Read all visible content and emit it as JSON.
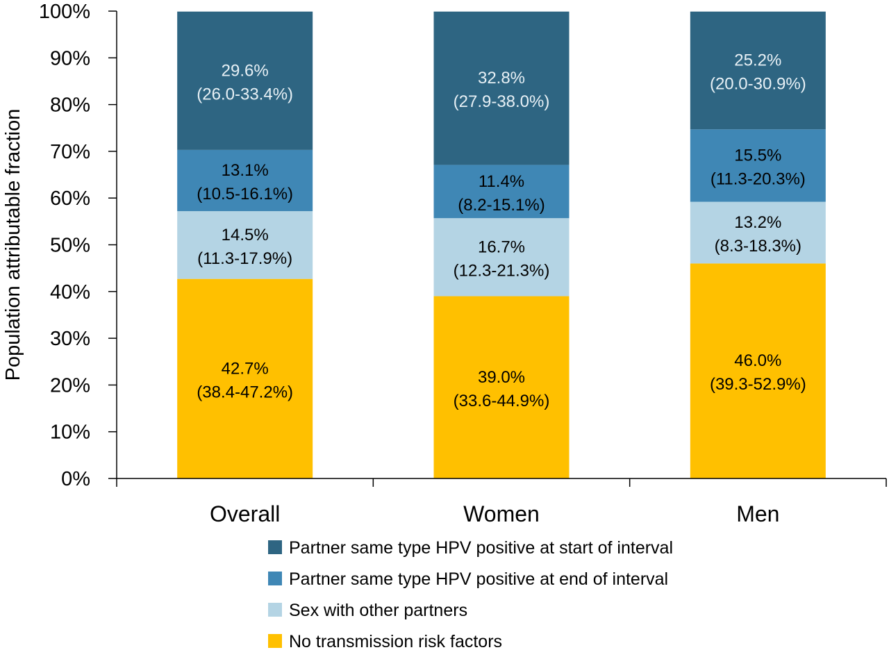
{
  "chart_data": {
    "type": "bar",
    "stacked": true,
    "ylabel": "Population attributable fraction",
    "ylim": [
      0,
      100
    ],
    "y_ticks": [
      "0%",
      "10%",
      "20%",
      "30%",
      "40%",
      "50%",
      "60%",
      "70%",
      "80%",
      "90%",
      "100%"
    ],
    "categories": [
      "Overall",
      "Women",
      "Men"
    ],
    "legend_position": "bottom",
    "series": [
      {
        "name": "No transmission risk factors",
        "color": "#ffc000",
        "text_color": "#000000",
        "values": [
          42.7,
          39.0,
          46.0
        ],
        "labels": [
          "42.7%",
          "39.0%",
          "46.0%"
        ],
        "ci": [
          "(38.4-47.2%)",
          "(33.6-44.9%)",
          "(39.3-52.9%)"
        ]
      },
      {
        "name": "Sex with other partners",
        "color": "#b4d4e4",
        "text_color": "#000000",
        "values": [
          14.5,
          16.7,
          13.2
        ],
        "labels": [
          "14.5%",
          "16.7%",
          "13.2%"
        ],
        "ci": [
          "(11.3-17.9%)",
          "(12.3-21.3%)",
          "(8.3-18.3%)"
        ]
      },
      {
        "name": "Partner same type HPV positive at end of interval",
        "color": "#3f87b5",
        "text_color": "#000000",
        "values": [
          13.1,
          11.4,
          15.5
        ],
        "labels": [
          "13.1%",
          "11.4%",
          "15.5%"
        ],
        "ci": [
          "(10.5-16.1%)",
          "(8.2-15.1%)",
          "(11.3-20.3%)"
        ]
      },
      {
        "name": "Partner same type HPV positive at start of interval",
        "color": "#2e6582",
        "text_color": "#e8f1f6",
        "values": [
          29.6,
          32.8,
          25.2
        ],
        "labels": [
          "29.6%",
          "32.8%",
          "25.2%"
        ],
        "ci": [
          "(26.0-33.4%)",
          "(27.9-38.0%)",
          "(20.0-30.9%)"
        ]
      }
    ],
    "legend_order": [
      3,
      2,
      1,
      0
    ]
  }
}
